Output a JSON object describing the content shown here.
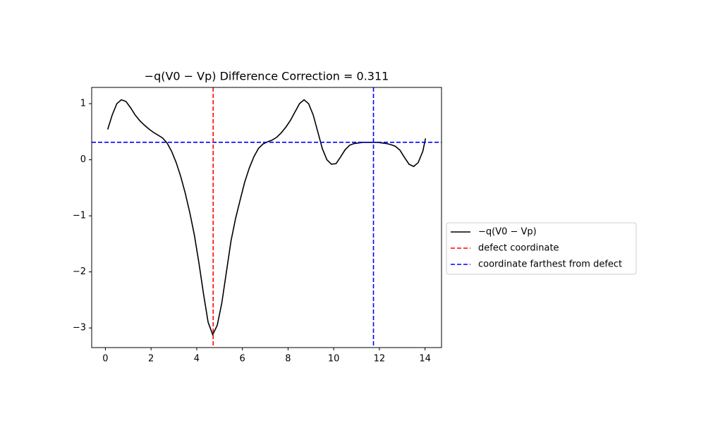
{
  "chart_data": {
    "type": "line",
    "title": "−q(V0 − Vp) Difference Correction = 0.311",
    "x": [
      0.1,
      0.3,
      0.5,
      0.7,
      0.9,
      1.1,
      1.3,
      1.5,
      1.7,
      1.9,
      2.1,
      2.3,
      2.5,
      2.7,
      2.9,
      3.1,
      3.3,
      3.5,
      3.7,
      3.9,
      4.1,
      4.3,
      4.5,
      4.7,
      4.9,
      5.1,
      5.3,
      5.5,
      5.7,
      5.9,
      6.1,
      6.3,
      6.5,
      6.7,
      6.9,
      7.1,
      7.3,
      7.5,
      7.7,
      7.9,
      8.1,
      8.3,
      8.5,
      8.7,
      8.9,
      9.1,
      9.3,
      9.5,
      9.7,
      9.9,
      10.1,
      10.3,
      10.5,
      10.7,
      10.9,
      11.1,
      11.3,
      11.5,
      11.7,
      11.9,
      12.1,
      12.3,
      12.5,
      12.7,
      12.9,
      13.1,
      13.3,
      13.5,
      13.7,
      13.9,
      14.02
    ],
    "series": [
      {
        "name": "−q(V0 − Vp)",
        "color": "#000000",
        "values": [
          0.54,
          0.8,
          1.0,
          1.07,
          1.04,
          0.93,
          0.8,
          0.7,
          0.62,
          0.55,
          0.49,
          0.44,
          0.39,
          0.3,
          0.15,
          -0.05,
          -0.3,
          -0.6,
          -0.95,
          -1.35,
          -1.85,
          -2.4,
          -2.9,
          -3.12,
          -2.95,
          -2.55,
          -2.0,
          -1.45,
          -1.05,
          -0.72,
          -0.4,
          -0.15,
          0.05,
          0.2,
          0.28,
          0.32,
          0.35,
          0.4,
          0.48,
          0.58,
          0.7,
          0.85,
          1.0,
          1.07,
          1.0,
          0.8,
          0.5,
          0.2,
          0.0,
          -0.08,
          -0.07,
          0.05,
          0.18,
          0.26,
          0.29,
          0.3,
          0.31,
          0.31,
          0.31,
          0.31,
          0.3,
          0.29,
          0.27,
          0.24,
          0.17,
          0.04,
          -0.08,
          -0.12,
          -0.05,
          0.15,
          0.38
        ]
      }
    ],
    "vlines": [
      {
        "name": "defect coordinate",
        "color": "#ff0000",
        "x": 4.72
      },
      {
        "name": "coordinate farthest from defect",
        "color": "#0000ff",
        "x": 11.74
      }
    ],
    "hline": {
      "color": "#0000ff",
      "y": 0.311
    },
    "xlim": [
      -0.6,
      14.72
    ],
    "ylim": [
      -3.35,
      1.29
    ],
    "xticks": [
      0,
      2,
      4,
      6,
      8,
      10,
      12,
      14
    ],
    "yticks": [
      {
        "value": -3,
        "label": "−3"
      },
      {
        "value": -2,
        "label": "−2"
      },
      {
        "value": -1,
        "label": "−1"
      },
      0,
      1
    ],
    "legend": "center left outside"
  }
}
